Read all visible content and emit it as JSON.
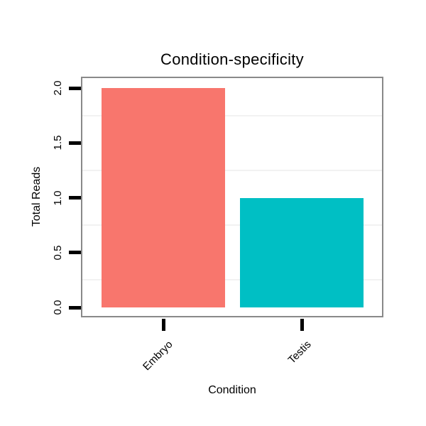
{
  "chart_data": {
    "type": "bar",
    "title": "Condition-specificity",
    "xlabel": "Condition",
    "ylabel": "Total Reads",
    "categories": [
      "Embryo",
      "Testis"
    ],
    "values": [
      2,
      1
    ],
    "series_colors": [
      "#F8766D",
      "#00BFC4"
    ],
    "ylim": [
      0,
      2
    ],
    "yticks": {
      "labels": [
        "0.0",
        "0.5",
        "1.0",
        "1.5",
        "2.0"
      ],
      "values": [
        0,
        0.5,
        1,
        1.5,
        2
      ]
    },
    "minor_gridline_values": [
      0.25,
      0.75,
      1.25,
      1.75
    ],
    "grid": "minor-horizontal-only",
    "legend": "none"
  },
  "style": {
    "background": "#FFFFFF",
    "panel_border": "#898989",
    "gridline": "#F2F2F2",
    "tick_color": "#000000",
    "text_color": "#000000"
  }
}
